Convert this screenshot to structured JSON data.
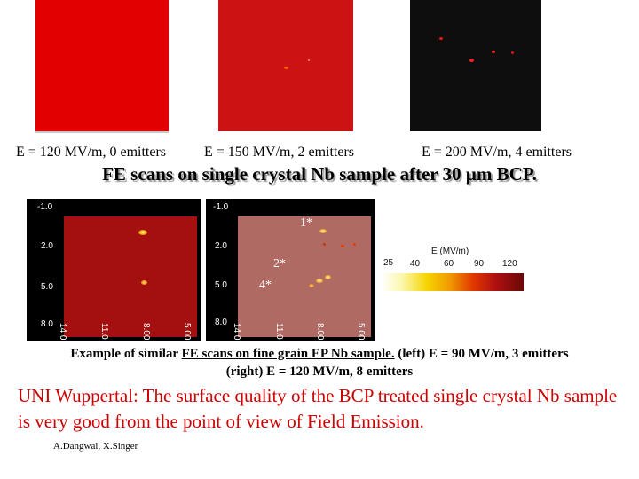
{
  "colors": {
    "scan_red": "#e00000",
    "scan_dark_red": "#cc1010",
    "conclusion": "#cc0000"
  },
  "top_scans": {
    "captions": [
      "E = 120 MV/m, 0 emitters",
      "E = 150 MV/m, 2 emitters",
      "E = 200 MV/m, 4 emitters"
    ]
  },
  "title": "FE scans on single crystal Nb sample after 30 µm BCP.",
  "mid_scans": {
    "left": {
      "y_ticks": [
        "-1.0",
        "2.0",
        "5.0",
        "8.0"
      ],
      "x_ticks": [
        "14.0",
        "11.0",
        "8.00",
        "5.00"
      ]
    },
    "right": {
      "y_ticks": [
        "-1.0",
        "2.0",
        "5.0",
        "8.0"
      ],
      "x_ticks": [
        "14.0",
        "11.0",
        "8.00",
        "5.00"
      ],
      "emitter_labels": [
        "1*",
        "2*",
        "4*"
      ]
    },
    "scale": {
      "title": "E (MV/m)",
      "ticks": [
        "25",
        "40",
        "60",
        "90",
        "120"
      ]
    }
  },
  "example_caption": {
    "part1": "Example of similar ",
    "part2": "FE scans on fine grain EP Nb sample.",
    "part3": " (left) E = 90 MV/m, 3 emitters",
    "line2": "(right) E = 120 MV/m, 8 emitters"
  },
  "conclusion": "UNI Wuppertal: The surface quality of the BCP treated single crystal Nb sample is very good from the point of view of Field Emission.",
  "author": "A.Dangwal, X.Singer"
}
